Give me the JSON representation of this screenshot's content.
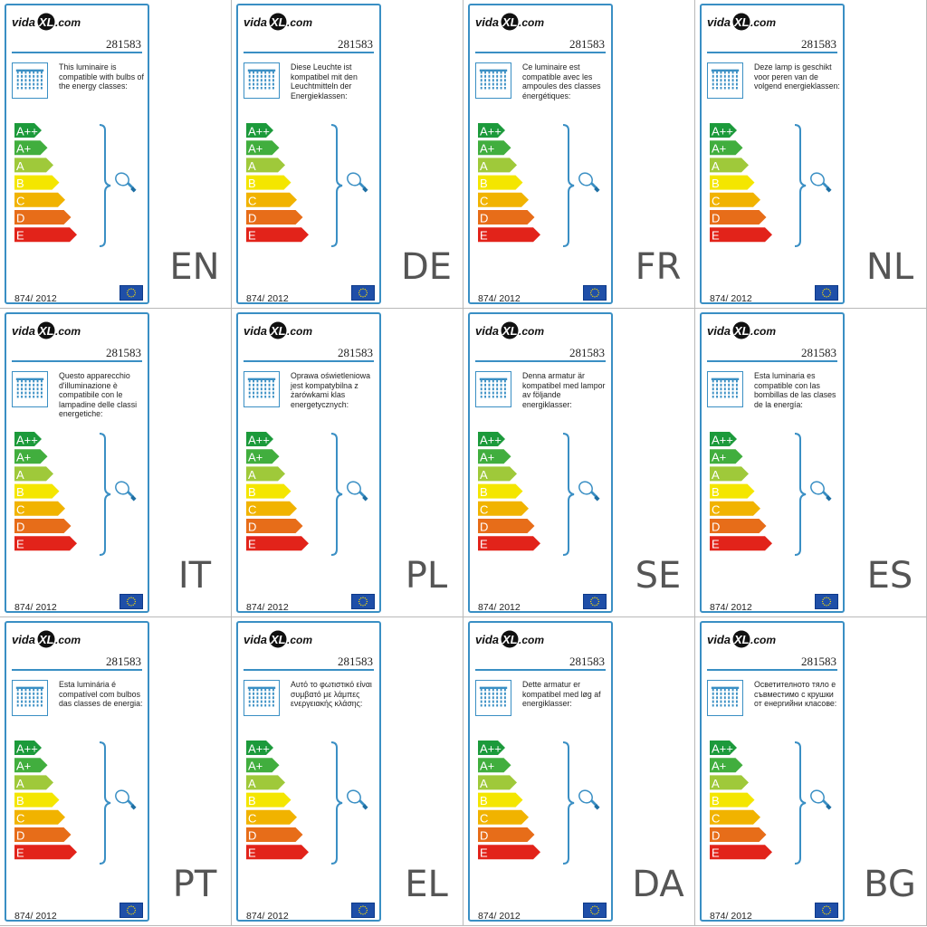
{
  "brand": {
    "name": "vidaXL.com",
    "part1": "vida",
    "part2": "XL",
    "part3": ".com"
  },
  "product_number": "281583",
  "regulation": "874/ 2012",
  "scale_classes": [
    "A++",
    "A+",
    "A",
    "B",
    "C",
    "D",
    "E"
  ],
  "scale_colors": [
    "#1c9a3b",
    "#41ae3e",
    "#9fc93a",
    "#f4e600",
    "#f1b300",
    "#e76d19",
    "#e2231a"
  ],
  "accent_color": "#3a8fc4",
  "icons": {
    "lamp": "chandelier-icon",
    "bulb": "bulb-icon",
    "flag": "eu-flag-icon"
  },
  "labels": [
    {
      "lang": "EN",
      "text": "This luminaire is compatible with bulbs of the energy classes:"
    },
    {
      "lang": "DE",
      "text": "Diese Leuchte ist kompatibel mit den Leuchtmitteln der Energieklassen:"
    },
    {
      "lang": "FR",
      "text": "Ce luminaire est compatible avec les ampoules des classes énergétiques:"
    },
    {
      "lang": "NL",
      "text": "Deze lamp is geschikt voor peren van de volgend energieklassen:"
    },
    {
      "lang": "IT",
      "text": "Questo apparecchio d'illuminazione è compatibile con le lampadine delle classi energetiche:"
    },
    {
      "lang": "PL",
      "text": "Oprawa oświetleniowa jest kompatybilna z żarówkami klas energetycznych:"
    },
    {
      "lang": "SE",
      "text": "Denna armatur är kompatibel med lampor av följande energiklasser:"
    },
    {
      "lang": "ES",
      "text": "Esta luminaria es compatible con las bombillas de las clases de la energía:"
    },
    {
      "lang": "PT",
      "text": "Esta luminária é compatível com bulbos das classes de energia:"
    },
    {
      "lang": "EL",
      "text": "Αυτό το φωτιστικό είναι συμβατό με λάμπες ενεργειακής κλάσης:"
    },
    {
      "lang": "DA",
      "text": "Dette armatur er kompatibel med løg af energiklasser:"
    },
    {
      "lang": "BG",
      "text": "Осветителното тяло е съвместимо с крушки от енергийни класове:"
    }
  ]
}
